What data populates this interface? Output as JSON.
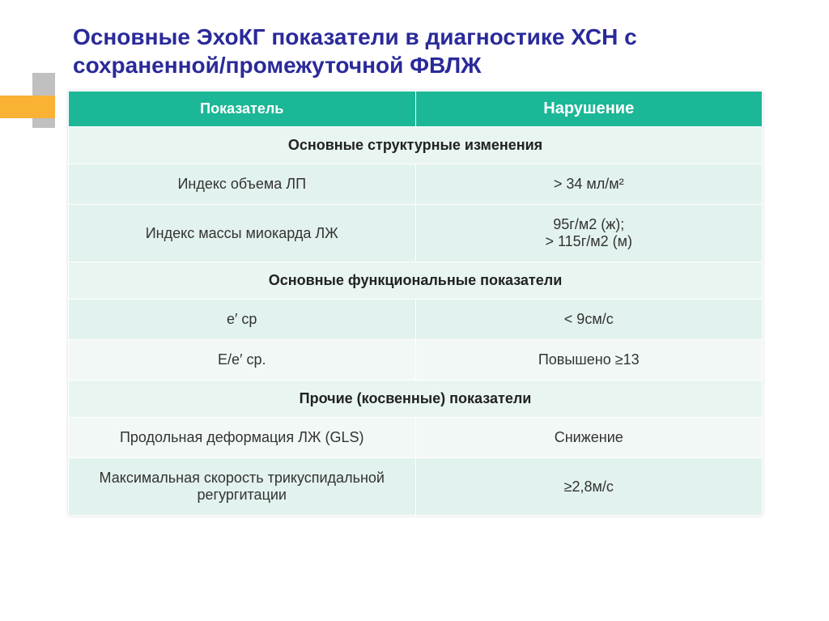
{
  "title": "Основные ЭхоКГ показатели в диагностике ХСН с сохраненной/промежуточной ФВЛЖ",
  "colors": {
    "title_color": "#2a2a9a",
    "header_bg": "#1cb796",
    "header_fg": "#ffffff",
    "row_bg": "#e2f2ee",
    "row_alt_bg": "#f2f8f6",
    "section_bg": "#e8f5f1",
    "deco_orange": "#f9b233",
    "deco_grey": "#c0c0c0",
    "page_bg": "#ffffff"
  },
  "typography": {
    "title_fontsize": 28,
    "header_fontsize": 18,
    "cell_fontsize": 18
  },
  "table": {
    "columns": [
      "Показатель",
      "Нарушение"
    ],
    "col_widths": [
      "50%",
      "50%"
    ],
    "sections": [
      {
        "heading": "Основные структурные изменения",
        "rows": [
          {
            "param": "Индекс объема ЛП",
            "value": "> 34 мл/м²",
            "alt": false
          },
          {
            "param": "Индекс массы миокарда ЛЖ",
            "value": "95г/м2 (ж);\n> 115г/м2 (м)",
            "alt": false
          }
        ]
      },
      {
        "heading": "Основные функциональные показатели",
        "rows": [
          {
            "param": "е′ ср",
            "value": "< 9см/с",
            "alt": false
          },
          {
            "param": "Е/е′ ср.",
            "value": "Повышено ≥13",
            "alt": true
          }
        ]
      },
      {
        "heading": "Прочие (косвенные) показатели",
        "rows": [
          {
            "param": "Продольная деформация ЛЖ (GLS)",
            "value": "Снижение",
            "alt": true
          },
          {
            "param": "Максимальная скорость трикуспидальной регургитации",
            "value": "≥2,8м/с",
            "alt": false
          }
        ]
      }
    ]
  }
}
